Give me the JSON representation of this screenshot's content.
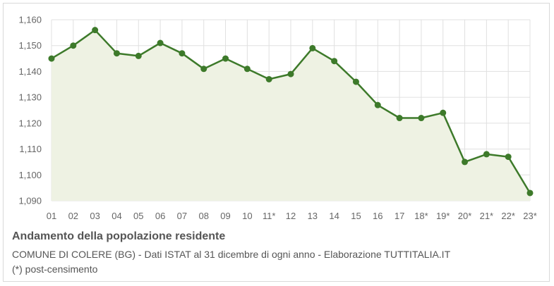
{
  "chart_data": {
    "type": "area",
    "title": "Andamento della popolazione residente",
    "subtitle": "COMUNE DI COLERE (BG) - Dati ISTAT al 31 dicembre di ogni anno - Elaborazione TUTTITALIA.IT",
    "note": "(*) post-censimento",
    "categories": [
      "01",
      "02",
      "03",
      "04",
      "05",
      "06",
      "07",
      "08",
      "09",
      "10",
      "11*",
      "12",
      "13",
      "14",
      "15",
      "16",
      "17",
      "18*",
      "19*",
      "20*",
      "21*",
      "22*",
      "23*"
    ],
    "series": [
      {
        "values": [
          1145,
          1150,
          1156,
          1147,
          1146,
          1151,
          1147,
          1141,
          1145,
          1141,
          1137,
          1139,
          1149,
          1144,
          1136,
          1127,
          1122,
          1122,
          1124,
          1105,
          1108,
          1107,
          1093
        ]
      }
    ],
    "ylim": [
      1090,
      1160
    ],
    "yticks": [
      1160,
      1150,
      1140,
      1130,
      1120,
      1110,
      1100,
      1090
    ],
    "ytick_labels": [
      "1,160",
      "1,150",
      "1,140",
      "1,130",
      "1,120",
      "1,110",
      "1,100",
      "1,090"
    ],
    "grid": true,
    "colors": {
      "line": "#3d7a2a",
      "fill": "#eef2e3",
      "grid": "#e0e0e0"
    }
  }
}
